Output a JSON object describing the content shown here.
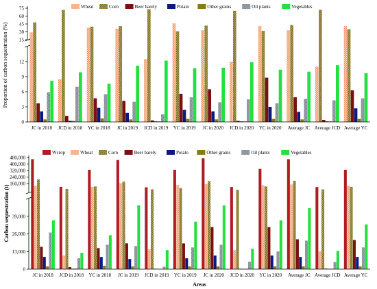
{
  "colors": {
    "Wcrop": "#b01c22",
    "Wheat": "#f08a55",
    "Corn": "#d8c870",
    "Beer barely": "#7a1010",
    "Potato": "#0c1a80",
    "Other grains": "#8a7a14",
    "Oil plants": "#4a5560",
    "Vegetables": "#22e040"
  },
  "chart_data": [
    {
      "type": "bar",
      "ylabel": "Proportion of carbon sequestration (%)",
      "xlabel": "",
      "legend_position": "top",
      "categories": [
        "JC in 2018",
        "JCD in 2018",
        "YC in 2018",
        "JC in 2019",
        "JCD in 2019",
        "YC in 2019",
        "JC in 2020",
        "JCD in 2020",
        "YC in 2020",
        "Average JC",
        "Average JCD",
        "Average YC"
      ],
      "axis_segments": [
        {
          "range": [
            0,
            15
          ],
          "ticks": [
            0,
            3,
            6,
            9,
            12
          ]
        },
        {
          "range": [
            15,
            75
          ],
          "ticks": [
            15,
            30,
            45,
            60,
            75
          ]
        }
      ],
      "series": [
        {
          "name": "Wheat",
          "values": [
            29,
            8.5,
            38,
            36,
            12.5,
            46,
            33,
            12,
            41,
            33,
            11,
            41
          ]
        },
        {
          "name": "Corn",
          "values": [
            48,
            72,
            40,
            41,
            73,
            31,
            42,
            70,
            32,
            43,
            72,
            35
          ]
        },
        {
          "name": "Beer barely",
          "values": [
            3.7,
            1.2,
            4.7,
            4.2,
            0.3,
            5.6,
            6.5,
            0.2,
            8.8,
            4.9,
            0.4,
            6.3
          ]
        },
        {
          "name": "Potato",
          "values": [
            2.1,
            0.2,
            2.8,
            1.8,
            0.1,
            2.4,
            2.1,
            0.1,
            3.0,
            2.0,
            0.1,
            2.7
          ]
        },
        {
          "name": "Other grains",
          "values": [
            0.5,
            0.2,
            0.7,
            0.5,
            0.1,
            0.6,
            0.5,
            0.1,
            0.6,
            0.5,
            0.1,
            0.6
          ]
        },
        {
          "name": "Oil plants",
          "values": [
            5.9,
            7.0,
            5.5,
            4.0,
            1.5,
            4.9,
            3.9,
            4.5,
            3.7,
            4.6,
            4.3,
            4.7
          ]
        },
        {
          "name": "Vegetables",
          "values": [
            8.2,
            9.9,
            7.6,
            11.2,
            12.2,
            10.7,
            10.8,
            11.9,
            10.4,
            10.0,
            11.3,
            9.7
          ]
        }
      ]
    },
    {
      "type": "bar",
      "ylabel": "Carbon sequestration (t)",
      "xlabel": "Areas",
      "legend_position": "top",
      "categories": [
        "JC in 2018",
        "JCD in 2018",
        "YC in 2018",
        "JC in 2019",
        "JCD in 2019",
        "YC in 2019",
        "JC in 2020",
        "JCD in 2020",
        "YC in 2020",
        "Average JC",
        "Average JCD",
        "Average YC"
      ],
      "axis_segments": [
        {
          "range": [
            0,
            52000
          ],
          "ticks": [
            0,
            13000,
            26000,
            39000
          ]
        },
        {
          "range": [
            52000,
            480000
          ],
          "ticks": [
            160000,
            240000,
            320000,
            400000,
            480000
          ]
        }
      ],
      "tick_labels_lower": [
        "0",
        "13,000",
        "26,000",
        "39,000"
      ],
      "tick_labels_upper": [
        "160,000",
        "240,000",
        "320,000",
        "400,000",
        "480,000"
      ],
      "series": [
        {
          "name": "Wcrop",
          "values": [
            460000,
            120000,
            330000,
            450000,
            115000,
            330000,
            470000,
            118000,
            340000,
            460000,
            118000,
            330000
          ]
        },
        {
          "name": "Wheat",
          "values": [
            135000,
            10000,
            120000,
            165000,
            14500,
            145000,
            155000,
            14000,
            140000,
            150000,
            13000,
            135000
          ]
        },
        {
          "name": "Corn",
          "values": [
            210000,
            95000,
            125000,
            185000,
            90000,
            105000,
            190000,
            85000,
            125000,
            195000,
            90000,
            120000
          ]
        },
        {
          "name": "Beer barely",
          "values": [
            16500,
            1500,
            15500,
            19000,
            300,
            19000,
            31000,
            300,
            31000,
            22000,
            400,
            21500
          ]
        },
        {
          "name": "Potato",
          "values": [
            9000,
            300,
            9000,
            7500,
            200,
            8000,
            10000,
            200,
            10000,
            9000,
            250,
            9000
          ]
        },
        {
          "name": "Other grains",
          "values": [
            2000,
            500,
            2500,
            2000,
            200,
            2000,
            2000,
            300,
            2000,
            2000,
            300,
            2000
          ]
        },
        {
          "name": "Oil plants",
          "values": [
            27000,
            8000,
            18000,
            17000,
            1800,
            16000,
            18000,
            5500,
            13000,
            21000,
            5200,
            16000
          ]
        },
        {
          "name": "Vegetables",
          "values": [
            36000,
            12000,
            25000,
            47000,
            14000,
            35000,
            47000,
            15000,
            36000,
            45000,
            13500,
            33000
          ]
        }
      ]
    }
  ]
}
